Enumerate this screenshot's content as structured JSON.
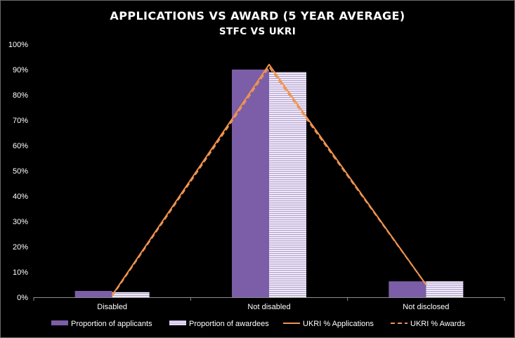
{
  "chart_data": {
    "type": "bar",
    "title": "APPLICATIONS VS AWARD (5 YEAR AVERAGE)",
    "subtitle": "STFC VS UKRI",
    "categories": [
      "Disabled",
      "Not disabled",
      "Not disclosed"
    ],
    "ylim": [
      0,
      100
    ],
    "y_ticks": [
      "0%",
      "10%",
      "20%",
      "30%",
      "40%",
      "50%",
      "60%",
      "70%",
      "80%",
      "90%",
      "100%"
    ],
    "grid": false,
    "legend_position": "bottom",
    "series": [
      {
        "name": "Proportion of applicants",
        "kind": "bar",
        "values": [
          2.5,
          90,
          6.3
        ],
        "color": "#7b5ea7"
      },
      {
        "name": "Proportion of awardees",
        "kind": "bar-striped",
        "values": [
          2.0,
          89,
          6.3
        ],
        "color": "#b9a7d6"
      },
      {
        "name": "UKRI % Applications",
        "kind": "line",
        "values": [
          0.8,
          92,
          5.0
        ],
        "color": "#f0934f"
      },
      {
        "name": "UKRI % Awards",
        "kind": "line-dashed",
        "values": [
          0.5,
          91,
          5.0
        ],
        "color": "#f0934f"
      }
    ]
  }
}
